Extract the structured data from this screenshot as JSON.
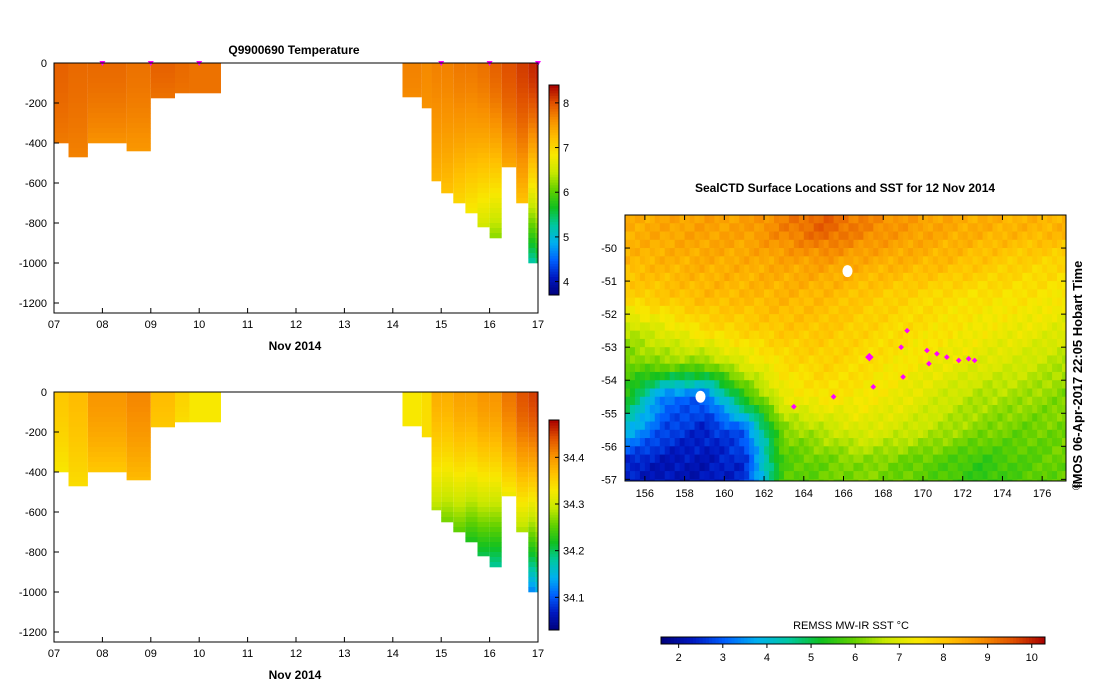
{
  "colors": {
    "palette": [
      "#00007a",
      "#0018c0",
      "#0060ff",
      "#00b0f0",
      "#00c8a0",
      "#10c020",
      "#60d000",
      "#c8e800",
      "#f8e800",
      "#ffc000",
      "#f89000",
      "#e05000",
      "#a80000"
    ],
    "marker": "#ff00ff",
    "land": "#ffffff"
  },
  "icons": {
    "copyright": "copyright-icon"
  },
  "chart_data": [
    {
      "type": "heatmap",
      "title": "Q9900690  Temperature",
      "xlabel": "Nov 2014",
      "ylabel": "",
      "x_ticks": [
        "07",
        "08",
        "09",
        "10",
        "11",
        "12",
        "13",
        "14",
        "15",
        "16",
        "17"
      ],
      "xlim": [
        7,
        17
      ],
      "y_ticks": [
        "0",
        "-200",
        "-400",
        "-600",
        "-800",
        "-1000",
        "-1200"
      ],
      "ylim": [
        -1250,
        0
      ],
      "colorbar": {
        "ticks": [
          "4",
          "5",
          "6",
          "7",
          "8"
        ],
        "range": [
          3.7,
          8.4
        ]
      },
      "profile_markers_x": [
        8.0,
        9.0,
        10.0,
        15.0,
        16.0,
        17.0
      ],
      "profiles": [
        {
          "x0": 7.0,
          "x1": 7.3,
          "bottom": -400,
          "v_top": 7.9,
          "v_bot": 7.75
        },
        {
          "x0": 7.3,
          "x1": 7.7,
          "bottom": -470,
          "v_top": 7.85,
          "v_bot": 7.7
        },
        {
          "x0": 7.7,
          "x1": 8.5,
          "bottom": -400,
          "v_top": 7.85,
          "v_bot": 7.6
        },
        {
          "x0": 8.5,
          "x1": 9.0,
          "bottom": -440,
          "v_top": 7.8,
          "v_bot": 7.55
        },
        {
          "x0": 9.0,
          "x1": 9.5,
          "bottom": -180,
          "v_top": 7.9,
          "v_bot": 7.8
        },
        {
          "x0": 9.5,
          "x1": 9.8,
          "bottom": -160,
          "v_top": 7.85,
          "v_bot": 7.8
        },
        {
          "x0": 9.8,
          "x1": 10.45,
          "bottom": -150,
          "v_top": 7.8,
          "v_bot": 7.8
        },
        {
          "x0": 14.2,
          "x1": 14.6,
          "bottom": -170,
          "v_top": 7.7,
          "v_bot": 7.65
        },
        {
          "x0": 14.6,
          "x1": 14.8,
          "bottom": -230,
          "v_top": 7.65,
          "v_bot": 7.6
        },
        {
          "x0": 14.8,
          "x1": 15.0,
          "bottom": -590,
          "v_top": 7.7,
          "v_bot": 7.3
        },
        {
          "x0": 15.0,
          "x1": 15.25,
          "bottom": -650,
          "v_top": 7.7,
          "v_bot": 7.2
        },
        {
          "x0": 15.25,
          "x1": 15.5,
          "bottom": -700,
          "v_top": 7.75,
          "v_bot": 7.0
        },
        {
          "x0": 15.5,
          "x1": 15.75,
          "bottom": -760,
          "v_top": 7.75,
          "v_bot": 6.8
        },
        {
          "x0": 15.75,
          "x1": 16.0,
          "bottom": -820,
          "v_top": 7.8,
          "v_bot": 6.5
        },
        {
          "x0": 16.0,
          "x1": 16.25,
          "bottom": -880,
          "v_top": 7.9,
          "v_bot": 6.2
        },
        {
          "x0": 16.25,
          "x1": 16.55,
          "bottom": -520,
          "v_top": 8.0,
          "v_bot": 7.4
        },
        {
          "x0": 16.55,
          "x1": 16.8,
          "bottom": -700,
          "v_top": 8.1,
          "v_bot": 7.2
        },
        {
          "x0": 16.8,
          "x1": 16.95,
          "bottom": -1000,
          "v_top": 8.2,
          "v_bot": 5.2
        },
        {
          "x0": 16.95,
          "x1": 17.05,
          "bottom": -1000,
          "v_top": 8.3,
          "v_bot": 5.4
        }
      ]
    },
    {
      "type": "heatmap",
      "title": "",
      "xlabel": "Nov 2014",
      "ylabel": "",
      "x_ticks": [
        "07",
        "08",
        "09",
        "10",
        "11",
        "12",
        "13",
        "14",
        "15",
        "16",
        "17"
      ],
      "xlim": [
        7,
        17
      ],
      "y_ticks": [
        "0",
        "-200",
        "-400",
        "-600",
        "-800",
        "-1000",
        "-1200"
      ],
      "ylim": [
        -1250,
        0
      ],
      "colorbar": {
        "ticks": [
          "34.1",
          "34.2",
          "34.3",
          "34.4"
        ],
        "range": [
          34.03,
          34.48
        ]
      },
      "profiles": [
        {
          "x0": 7.0,
          "x1": 7.3,
          "bottom": -400,
          "v_top": 34.36,
          "v_bot": 34.33
        },
        {
          "x0": 7.3,
          "x1": 7.7,
          "bottom": -470,
          "v_top": 34.37,
          "v_bot": 34.34
        },
        {
          "x0": 7.7,
          "x1": 8.5,
          "bottom": -400,
          "v_top": 34.4,
          "v_bot": 34.36
        },
        {
          "x0": 8.5,
          "x1": 9.0,
          "bottom": -440,
          "v_top": 34.41,
          "v_bot": 34.37
        },
        {
          "x0": 9.0,
          "x1": 9.5,
          "bottom": -180,
          "v_top": 34.37,
          "v_bot": 34.36
        },
        {
          "x0": 9.5,
          "x1": 9.8,
          "bottom": -160,
          "v_top": 34.35,
          "v_bot": 34.34
        },
        {
          "x0": 9.8,
          "x1": 10.45,
          "bottom": -150,
          "v_top": 34.33,
          "v_bot": 34.33
        },
        {
          "x0": 14.2,
          "x1": 14.6,
          "bottom": -170,
          "v_top": 34.33,
          "v_bot": 34.33
        },
        {
          "x0": 14.6,
          "x1": 14.8,
          "bottom": -230,
          "v_top": 34.34,
          "v_bot": 34.34
        },
        {
          "x0": 14.8,
          "x1": 15.0,
          "bottom": -590,
          "v_top": 34.38,
          "v_bot": 34.28
        },
        {
          "x0": 15.0,
          "x1": 15.25,
          "bottom": -650,
          "v_top": 34.38,
          "v_bot": 34.26
        },
        {
          "x0": 15.25,
          "x1": 15.5,
          "bottom": -700,
          "v_top": 34.39,
          "v_bot": 34.25
        },
        {
          "x0": 15.5,
          "x1": 15.75,
          "bottom": -760,
          "v_top": 34.39,
          "v_bot": 34.22
        },
        {
          "x0": 15.75,
          "x1": 16.0,
          "bottom": -820,
          "v_top": 34.4,
          "v_bot": 34.2
        },
        {
          "x0": 16.0,
          "x1": 16.25,
          "bottom": -880,
          "v_top": 34.4,
          "v_bot": 34.18
        },
        {
          "x0": 16.25,
          "x1": 16.55,
          "bottom": -520,
          "v_top": 34.42,
          "v_bot": 34.32
        },
        {
          "x0": 16.55,
          "x1": 16.8,
          "bottom": -700,
          "v_top": 34.44,
          "v_bot": 34.28
        },
        {
          "x0": 16.8,
          "x1": 16.95,
          "bottom": -1000,
          "v_top": 34.45,
          "v_bot": 34.12
        },
        {
          "x0": 16.95,
          "x1": 17.05,
          "bottom": -1000,
          "v_top": 34.46,
          "v_bot": 34.14
        }
      ]
    },
    {
      "type": "heatmap",
      "title": "SealCTD Surface Locations and SST for 12 Nov 2014",
      "xlabel": "",
      "ylabel": "",
      "x_ticks": [
        "156",
        "158",
        "160",
        "162",
        "164",
        "166",
        "168",
        "170",
        "172",
        "174",
        "176"
      ],
      "xlim": [
        155.0,
        177.2
      ],
      "y_ticks": [
        "-50",
        "-51",
        "-52",
        "-53",
        "-54",
        "-55",
        "-56",
        "-57"
      ],
      "ylim": [
        -57.05,
        -49.0
      ],
      "colorbar": {
        "label": "REMSS MW-IR SST °C",
        "ticks": [
          "2",
          "3",
          "4",
          "5",
          "6",
          "7",
          "8",
          "9",
          "10"
        ],
        "range": [
          1.6,
          10.3
        ]
      },
      "sst_grid": {
        "lon": [
          155,
          157,
          159,
          161,
          163,
          165,
          167,
          169,
          171,
          173,
          175,
          177
        ],
        "lat": [
          -49.5,
          -50.5,
          -51.5,
          -52.5,
          -53.5,
          -54.5,
          -55.5,
          -56.5
        ],
        "values": [
          [
            8.4,
            8.5,
            8.6,
            8.6,
            9.0,
            9.4,
            9.0,
            8.7,
            8.5,
            8.4,
            8.3,
            8.3
          ],
          [
            8.2,
            8.3,
            8.4,
            8.4,
            8.5,
            8.6,
            8.4,
            8.3,
            8.2,
            8.0,
            7.8,
            7.7
          ],
          [
            7.8,
            8.0,
            8.2,
            8.2,
            8.3,
            8.2,
            8.0,
            7.8,
            7.6,
            7.5,
            7.5,
            7.4
          ],
          [
            6.5,
            7.0,
            7.6,
            7.8,
            8.0,
            8.0,
            7.8,
            7.6,
            7.5,
            7.3,
            7.2,
            7.0
          ],
          [
            6.0,
            6.3,
            6.2,
            7.0,
            7.6,
            7.8,
            7.6,
            7.4,
            7.2,
            7.0,
            6.8,
            6.5
          ],
          [
            5.5,
            3.2,
            3.0,
            5.5,
            7.2,
            7.5,
            7.4,
            7.2,
            6.8,
            6.5,
            6.4,
            6.2
          ],
          [
            4.0,
            2.8,
            2.4,
            3.0,
            6.2,
            6.6,
            7.0,
            6.8,
            6.5,
            6.2,
            6.0,
            6.1
          ],
          [
            2.4,
            2.2,
            2.2,
            2.5,
            5.8,
            6.0,
            6.2,
            6.0,
            5.8,
            5.5,
            5.8,
            6.0
          ]
        ]
      },
      "locations": [
        {
          "lon": 167.3,
          "lat": -53.3
        },
        {
          "lon": 168.9,
          "lat": -53.0
        },
        {
          "lon": 169.2,
          "lat": -52.5
        },
        {
          "lon": 170.2,
          "lat": -53.1
        },
        {
          "lon": 170.7,
          "lat": -53.2
        },
        {
          "lon": 171.2,
          "lat": -53.3
        },
        {
          "lon": 171.8,
          "lat": -53.4
        },
        {
          "lon": 172.3,
          "lat": -53.35
        },
        {
          "lon": 172.6,
          "lat": -53.4
        },
        {
          "lon": 170.3,
          "lat": -53.5
        },
        {
          "lon": 169.0,
          "lat": -53.9
        },
        {
          "lon": 167.5,
          "lat": -54.2
        },
        {
          "lon": 165.5,
          "lat": -54.5
        },
        {
          "lon": 163.5,
          "lat": -54.8
        }
      ],
      "land": [
        {
          "lon": 166.2,
          "lat": -50.7
        },
        {
          "lon": 158.8,
          "lat": -54.5
        }
      ],
      "timestamp": "IMOS 06-Apr-2017 22:05 Hobart Time"
    }
  ]
}
